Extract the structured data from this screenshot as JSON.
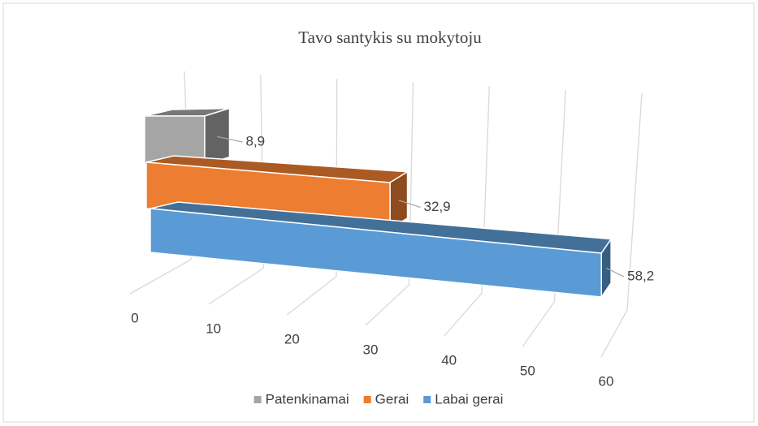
{
  "chart_data": {
    "type": "bar3d",
    "orientation": "horizontal",
    "title": "Tavo santykis su mokytoju",
    "series": [
      {
        "name": "Patenkinamai",
        "color": "#a5a5a5",
        "values": [
          8.9
        ],
        "value_labels": [
          "8,9"
        ]
      },
      {
        "name": "Gerai",
        "color": "#ed7d31",
        "values": [
          32.9
        ],
        "value_labels": [
          "32,9"
        ]
      },
      {
        "name": "Labai gerai",
        "color": "#5b9bd5",
        "values": [
          58.2
        ],
        "value_labels": [
          "58,2"
        ]
      }
    ],
    "xlim": [
      0,
      60
    ],
    "xticks": [
      0,
      10,
      20,
      30,
      40,
      50,
      60
    ],
    "grid": true,
    "legend": "bottom"
  }
}
